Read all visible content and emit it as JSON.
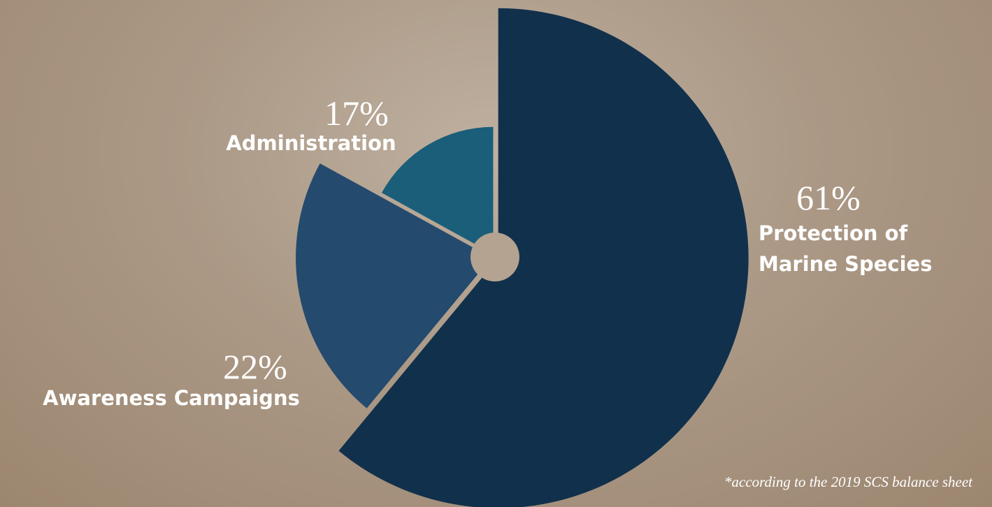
{
  "chart_data": {
    "type": "pie",
    "categories": [
      "Protection of Marine Species",
      "Awareness Campaigns",
      "Administration"
    ],
    "values": [
      61,
      22,
      17
    ],
    "value_labels": [
      "61%",
      "22%",
      "17%"
    ],
    "colors": [
      "#11304b",
      "#244a6e",
      "#1a5e7a"
    ],
    "footnote": "*according to the 2019 SCS balance sheet"
  }
}
